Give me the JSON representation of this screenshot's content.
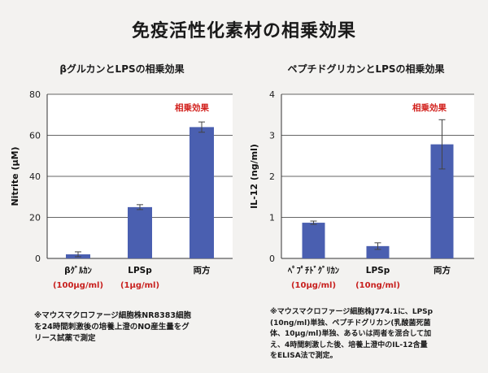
{
  "title": "免疫活性化素材の相乗効果",
  "chart_data": [
    {
      "type": "bar",
      "title": "βグルカンとLPSの相乗効果",
      "ylabel": "Nitrite (μM)",
      "ylim": [
        0,
        80
      ],
      "yticks": [
        "0",
        "20",
        "40",
        "60",
        "80"
      ],
      "categories": [
        "βｸﾞﾙｶﾝ",
        "LPSp",
        "両方"
      ],
      "category_sublabels": [
        "(100μg/ml)",
        "(1μg/ml)",
        ""
      ],
      "values": [
        2,
        25,
        64
      ],
      "errors": [
        1.2,
        1.2,
        2.5
      ],
      "annotation": "相乗効果",
      "color": "#4a5fb0",
      "grid": true,
      "note": "※マウスマクロファージ細胞株NR8383細胞\nを24時間刺激後の培養上澄のNO産生量をグ\nリース試薬で測定"
    },
    {
      "type": "bar",
      "title": "ペプチドグリカンとLPSの相乗効果",
      "ylabel": "IL-12 (ng/ml)",
      "ylim": [
        0,
        4
      ],
      "yticks": [
        "0",
        "1",
        "2",
        "3",
        "4"
      ],
      "categories": [
        "ﾍﾟﾌﾟﾁﾄﾞｸﾞﾘｶﾝ",
        "LPSp",
        "両方"
      ],
      "category_sublabels": [
        "(10μg/ml)",
        "(10ng/ml)",
        ""
      ],
      "values": [
        0.87,
        0.3,
        2.78
      ],
      "errors": [
        0.04,
        0.08,
        0.6
      ],
      "annotation": "相乗効果",
      "color": "#4a5fb0",
      "grid": true,
      "note": "※マウスマクロファージ細胞株J774.1に、LPSp\n(10ng/ml)単独、ペプチドグリカン(乳酸菌死菌\n体、10μg/ml)単独、あるいは両者を混合して加\nえ、4時間刺激した後、培養上澄中のIL-12含量\nをELISA法で測定。"
    }
  ]
}
